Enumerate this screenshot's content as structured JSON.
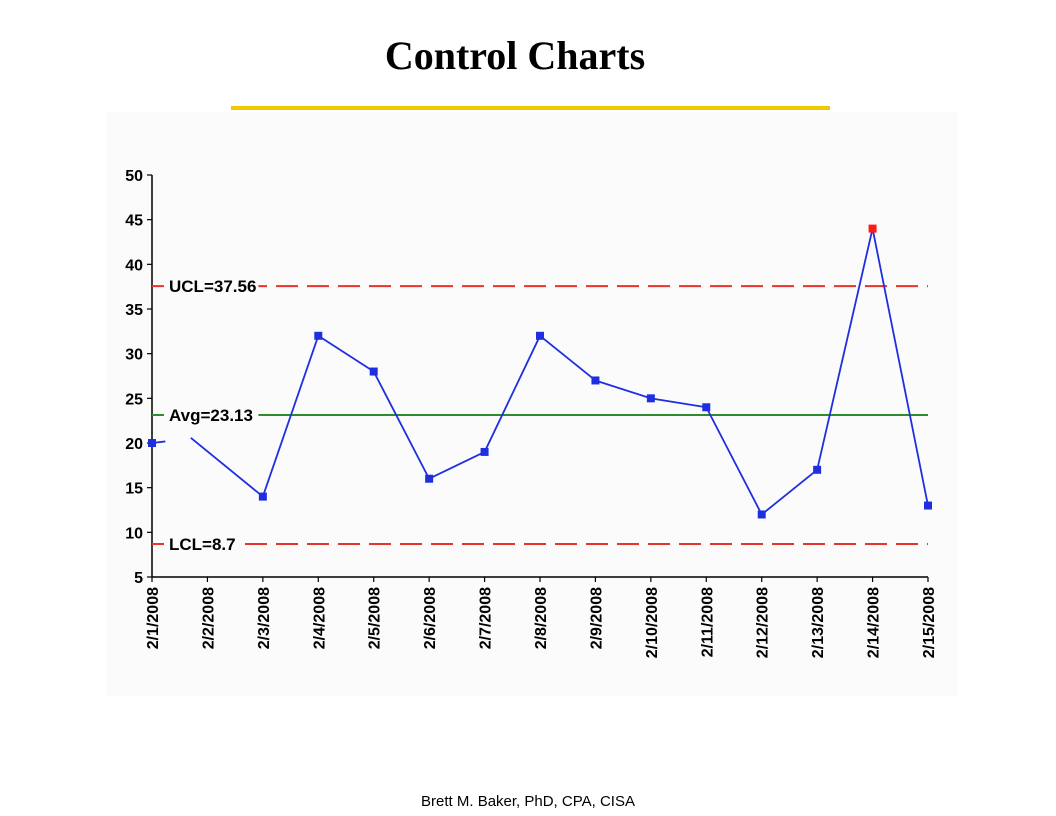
{
  "slide": {
    "title": "Control Charts",
    "footer": "Brett M. Baker, PhD, CPA, CISA"
  },
  "colors": {
    "title_rule": "#f2c800",
    "series": "#1f2fe0",
    "out_of_control_point": "#ff1a1a",
    "control_limit": "#e8332a",
    "average": "#2e8b2e"
  },
  "chart_data": {
    "type": "line",
    "title": "",
    "xlabel": "",
    "ylabel": "",
    "ylim": [
      5,
      50
    ],
    "yticks": [
      5,
      10,
      15,
      20,
      25,
      30,
      35,
      40,
      45,
      50
    ],
    "categories": [
      "2/1/2008",
      "2/2/2008",
      "2/3/2008",
      "2/4/2008",
      "2/5/2008",
      "2/6/2008",
      "2/7/2008",
      "2/8/2008",
      "2/9/2008",
      "2/10/2008",
      "2/11/2008",
      "2/12/2008",
      "2/13/2008",
      "2/14/2008",
      "2/15/2008"
    ],
    "series": [
      {
        "values": [
          20,
          null,
          14,
          32,
          28,
          16,
          19,
          32,
          27,
          25,
          24,
          12,
          17,
          44,
          13
        ],
        "out_of_control": [
          13
        ]
      }
    ],
    "control_lines": [
      {
        "label": "UCL=37.56",
        "value": 37.56,
        "style": "dashed",
        "color_key": "control_limit"
      },
      {
        "label": "Avg=23.13",
        "value": 23.13,
        "style": "solid",
        "color_key": "average"
      },
      {
        "label": "LCL=8.7",
        "value": 8.7,
        "style": "dashed",
        "color_key": "control_limit"
      }
    ],
    "grid": false,
    "legend": "none"
  }
}
